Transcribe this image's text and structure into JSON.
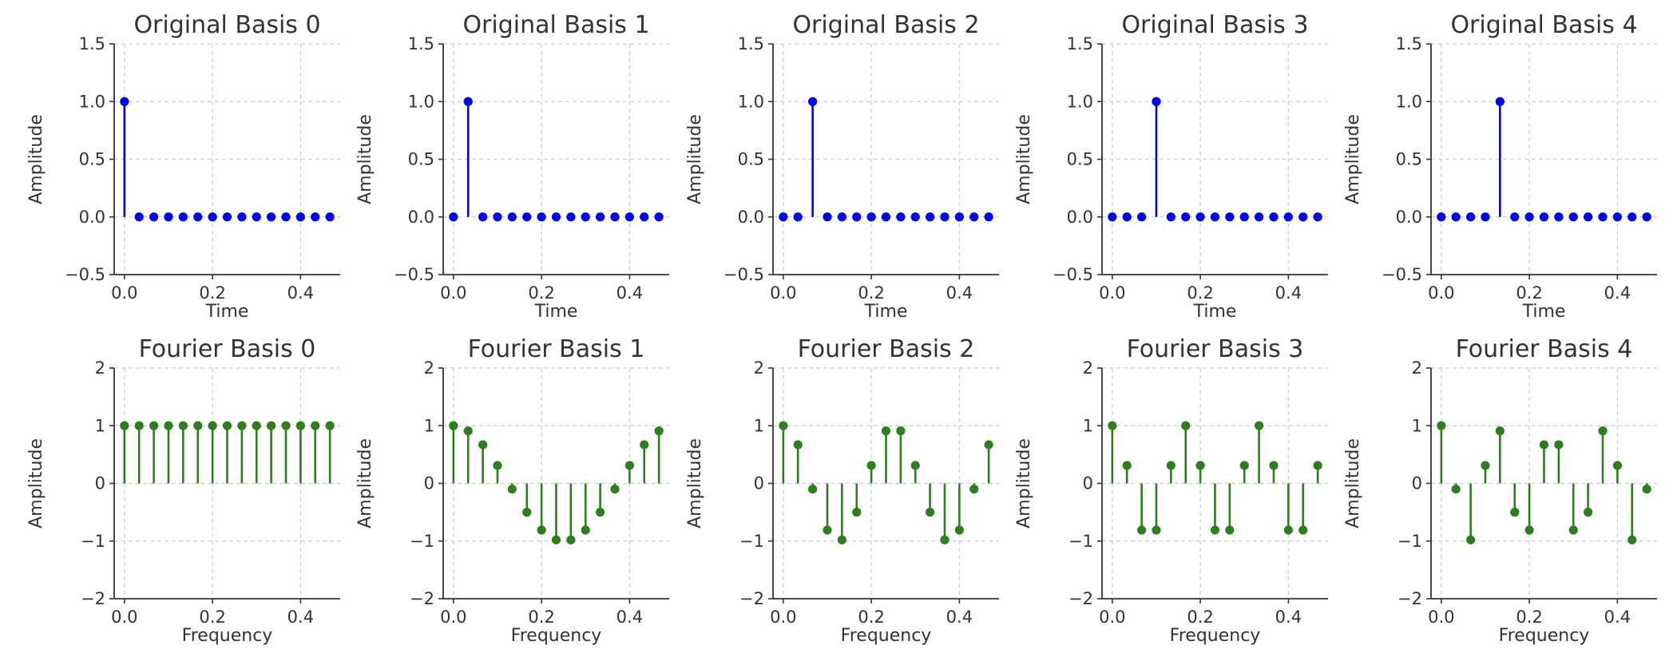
{
  "chart_data": [
    {
      "type": "scatter",
      "mark": "stem",
      "title": "Original Basis 0",
      "xlabel": "Time",
      "ylabel": "Amplitude",
      "color": "#0000ee",
      "xlim": [
        -0.0233,
        0.49
      ],
      "ylim": [
        -0.5,
        1.5
      ],
      "xticks": [
        "0.0",
        "0.2",
        "0.4"
      ],
      "xtick_values": [
        0,
        0.2,
        0.4
      ],
      "yticks": [
        "−0.5",
        "0.0",
        "0.5",
        "1.0",
        "1.5"
      ],
      "ytick_values": [
        -0.5,
        0,
        0.5,
        1,
        1.5
      ],
      "grid": true,
      "x": [
        0,
        0.0333,
        0.0667,
        0.1,
        0.1333,
        0.1667,
        0.2,
        0.2333,
        0.2667,
        0.3,
        0.3333,
        0.3667,
        0.4,
        0.4333,
        0.4667
      ],
      "y": [
        1,
        0,
        0,
        0,
        0,
        0,
        0,
        0,
        0,
        0,
        0,
        0,
        0,
        0,
        0
      ]
    },
    {
      "type": "scatter",
      "mark": "stem",
      "title": "Original Basis 1",
      "xlabel": "Time",
      "ylabel": "Amplitude",
      "color": "#0000ee",
      "xlim": [
        -0.0233,
        0.49
      ],
      "ylim": [
        -0.5,
        1.5
      ],
      "xticks": [
        "0.0",
        "0.2",
        "0.4"
      ],
      "xtick_values": [
        0,
        0.2,
        0.4
      ],
      "yticks": [
        "−0.5",
        "0.0",
        "0.5",
        "1.0",
        "1.5"
      ],
      "ytick_values": [
        -0.5,
        0,
        0.5,
        1,
        1.5
      ],
      "grid": true,
      "x": [
        0,
        0.0333,
        0.0667,
        0.1,
        0.1333,
        0.1667,
        0.2,
        0.2333,
        0.2667,
        0.3,
        0.3333,
        0.3667,
        0.4,
        0.4333,
        0.4667
      ],
      "y": [
        0,
        1,
        0,
        0,
        0,
        0,
        0,
        0,
        0,
        0,
        0,
        0,
        0,
        0,
        0
      ]
    },
    {
      "type": "scatter",
      "mark": "stem",
      "title": "Original Basis 2",
      "xlabel": "Time",
      "ylabel": "Amplitude",
      "color": "#0000ee",
      "xlim": [
        -0.0233,
        0.49
      ],
      "ylim": [
        -0.5,
        1.5
      ],
      "xticks": [
        "0.0",
        "0.2",
        "0.4"
      ],
      "xtick_values": [
        0,
        0.2,
        0.4
      ],
      "yticks": [
        "−0.5",
        "0.0",
        "0.5",
        "1.0",
        "1.5"
      ],
      "ytick_values": [
        -0.5,
        0,
        0.5,
        1,
        1.5
      ],
      "grid": true,
      "x": [
        0,
        0.0333,
        0.0667,
        0.1,
        0.1333,
        0.1667,
        0.2,
        0.2333,
        0.2667,
        0.3,
        0.3333,
        0.3667,
        0.4,
        0.4333,
        0.4667
      ],
      "y": [
        0,
        0,
        1,
        0,
        0,
        0,
        0,
        0,
        0,
        0,
        0,
        0,
        0,
        0,
        0
      ]
    },
    {
      "type": "scatter",
      "mark": "stem",
      "title": "Original Basis 3",
      "xlabel": "Time",
      "ylabel": "Amplitude",
      "color": "#0000ee",
      "xlim": [
        -0.0233,
        0.49
      ],
      "ylim": [
        -0.5,
        1.5
      ],
      "xticks": [
        "0.0",
        "0.2",
        "0.4"
      ],
      "xtick_values": [
        0,
        0.2,
        0.4
      ],
      "yticks": [
        "−0.5",
        "0.0",
        "0.5",
        "1.0",
        "1.5"
      ],
      "ytick_values": [
        -0.5,
        0,
        0.5,
        1,
        1.5
      ],
      "grid": true,
      "x": [
        0,
        0.0333,
        0.0667,
        0.1,
        0.1333,
        0.1667,
        0.2,
        0.2333,
        0.2667,
        0.3,
        0.3333,
        0.3667,
        0.4,
        0.4333,
        0.4667
      ],
      "y": [
        0,
        0,
        0,
        1,
        0,
        0,
        0,
        0,
        0,
        0,
        0,
        0,
        0,
        0,
        0
      ]
    },
    {
      "type": "scatter",
      "mark": "stem",
      "title": "Original Basis 4",
      "xlabel": "Time",
      "ylabel": "Amplitude",
      "color": "#0000ee",
      "xlim": [
        -0.0233,
        0.49
      ],
      "ylim": [
        -0.5,
        1.5
      ],
      "xticks": [
        "0.0",
        "0.2",
        "0.4"
      ],
      "xtick_values": [
        0,
        0.2,
        0.4
      ],
      "yticks": [
        "−0.5",
        "0.0",
        "0.5",
        "1.0",
        "1.5"
      ],
      "ytick_values": [
        -0.5,
        0,
        0.5,
        1,
        1.5
      ],
      "grid": true,
      "x": [
        0,
        0.0333,
        0.0667,
        0.1,
        0.1333,
        0.1667,
        0.2,
        0.2333,
        0.2667,
        0.3,
        0.3333,
        0.3667,
        0.4,
        0.4333,
        0.4667
      ],
      "y": [
        0,
        0,
        0,
        0,
        1,
        0,
        0,
        0,
        0,
        0,
        0,
        0,
        0,
        0,
        0
      ]
    },
    {
      "type": "scatter",
      "mark": "stem",
      "title": "Fourier Basis 0",
      "xlabel": "Frequency",
      "ylabel": "Amplitude",
      "color": "#2e7d1f",
      "xlim": [
        -0.0233,
        0.49
      ],
      "ylim": [
        -2,
        2
      ],
      "xticks": [
        "0.0",
        "0.2",
        "0.4"
      ],
      "xtick_values": [
        0,
        0.2,
        0.4
      ],
      "yticks": [
        "−2",
        "−1",
        "0",
        "1",
        "2"
      ],
      "ytick_values": [
        -2,
        -1,
        0,
        1,
        2
      ],
      "grid": true,
      "x": [
        0,
        0.0333,
        0.0667,
        0.1,
        0.1333,
        0.1667,
        0.2,
        0.2333,
        0.2667,
        0.3,
        0.3333,
        0.3667,
        0.4,
        0.4333,
        0.4667
      ],
      "y": [
        1,
        1,
        1,
        1,
        1,
        1,
        1,
        1,
        1,
        1,
        1,
        1,
        1,
        1,
        1
      ]
    },
    {
      "type": "scatter",
      "mark": "stem",
      "title": "Fourier Basis 1",
      "xlabel": "Frequency",
      "ylabel": "Amplitude",
      "color": "#2e7d1f",
      "xlim": [
        -0.0233,
        0.49
      ],
      "ylim": [
        -2,
        2
      ],
      "xticks": [
        "0.0",
        "0.2",
        "0.4"
      ],
      "xtick_values": [
        0,
        0.2,
        0.4
      ],
      "yticks": [
        "−2",
        "−1",
        "0",
        "1",
        "2"
      ],
      "ytick_values": [
        -2,
        -1,
        0,
        1,
        2
      ],
      "grid": true,
      "x": [
        0,
        0.0333,
        0.0667,
        0.1,
        0.1333,
        0.1667,
        0.2,
        0.2333,
        0.2667,
        0.3,
        0.3333,
        0.3667,
        0.4,
        0.4333,
        0.4667
      ],
      "y": [
        1,
        0.91,
        0.67,
        0.31,
        -0.1,
        -0.5,
        -0.81,
        -0.98,
        -0.98,
        -0.81,
        -0.5,
        -0.1,
        0.31,
        0.67,
        0.91
      ]
    },
    {
      "type": "scatter",
      "mark": "stem",
      "title": "Fourier Basis 2",
      "xlabel": "Frequency",
      "ylabel": "Amplitude",
      "color": "#2e7d1f",
      "xlim": [
        -0.0233,
        0.49
      ],
      "ylim": [
        -2,
        2
      ],
      "xticks": [
        "0.0",
        "0.2",
        "0.4"
      ],
      "xtick_values": [
        0,
        0.2,
        0.4
      ],
      "yticks": [
        "−2",
        "−1",
        "0",
        "1",
        "2"
      ],
      "ytick_values": [
        -2,
        -1,
        0,
        1,
        2
      ],
      "grid": true,
      "x": [
        0,
        0.0333,
        0.0667,
        0.1,
        0.1333,
        0.1667,
        0.2,
        0.2333,
        0.2667,
        0.3,
        0.3333,
        0.3667,
        0.4,
        0.4333,
        0.4667
      ],
      "y": [
        1,
        0.67,
        -0.1,
        -0.81,
        -0.98,
        -0.5,
        0.31,
        0.91,
        0.91,
        0.31,
        -0.5,
        -0.98,
        -0.81,
        -0.1,
        0.67
      ]
    },
    {
      "type": "scatter",
      "mark": "stem",
      "title": "Fourier Basis 3",
      "xlabel": "Frequency",
      "ylabel": "Amplitude",
      "color": "#2e7d1f",
      "xlim": [
        -0.0233,
        0.49
      ],
      "ylim": [
        -2,
        2
      ],
      "xticks": [
        "0.0",
        "0.2",
        "0.4"
      ],
      "xtick_values": [
        0,
        0.2,
        0.4
      ],
      "yticks": [
        "−2",
        "−1",
        "0",
        "1",
        "2"
      ],
      "ytick_values": [
        -2,
        -1,
        0,
        1,
        2
      ],
      "grid": true,
      "x": [
        0,
        0.0333,
        0.0667,
        0.1,
        0.1333,
        0.1667,
        0.2,
        0.2333,
        0.2667,
        0.3,
        0.3333,
        0.3667,
        0.4,
        0.4333,
        0.4667
      ],
      "y": [
        1,
        0.31,
        -0.81,
        -0.81,
        0.31,
        1,
        0.31,
        -0.81,
        -0.81,
        0.31,
        1,
        0.31,
        -0.81,
        -0.81,
        0.31
      ]
    },
    {
      "type": "scatter",
      "mark": "stem",
      "title": "Fourier Basis 4",
      "xlabel": "Frequency",
      "ylabel": "Amplitude",
      "color": "#2e7d1f",
      "xlim": [
        -0.0233,
        0.49
      ],
      "ylim": [
        -2,
        2
      ],
      "xticks": [
        "0.0",
        "0.2",
        "0.4"
      ],
      "xtick_values": [
        0,
        0.2,
        0.4
      ],
      "yticks": [
        "−2",
        "−1",
        "0",
        "1",
        "2"
      ],
      "ytick_values": [
        -2,
        -1,
        0,
        1,
        2
      ],
      "grid": true,
      "x": [
        0,
        0.0333,
        0.0667,
        0.1,
        0.1333,
        0.1667,
        0.2,
        0.2333,
        0.2667,
        0.3,
        0.3333,
        0.3667,
        0.4,
        0.4333,
        0.4667
      ],
      "y": [
        1,
        -0.1,
        -0.98,
        0.31,
        0.91,
        -0.5,
        -0.81,
        0.67,
        0.67,
        -0.81,
        -0.5,
        0.91,
        0.31,
        -0.98,
        -0.1
      ]
    }
  ]
}
